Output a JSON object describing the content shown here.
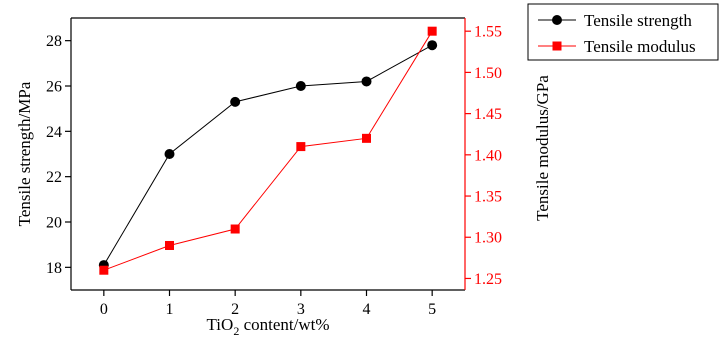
{
  "chart_data": {
    "type": "line",
    "x": [
      0,
      1,
      2,
      3,
      4,
      5
    ],
    "xlabel": {
      "main": "TiO",
      "sub": "2",
      "rest": " content/wt%"
    },
    "xlim": [
      -0.5,
      5.5
    ],
    "x_ticks": [
      "0",
      "1",
      "2",
      "3",
      "4",
      "5"
    ],
    "y_left": {
      "label": "Tensile strength/MPa",
      "lim": [
        17,
        29
      ],
      "ticks": [
        "18",
        "20",
        "22",
        "24",
        "26",
        "28"
      ],
      "color": "#000000"
    },
    "y_right": {
      "label": "Tensile modulus/GPa",
      "lim": [
        1.236,
        1.566
      ],
      "ticks": [
        "1.25",
        "1.30",
        "1.35",
        "1.40",
        "1.45",
        "1.50",
        "1.55"
      ],
      "color": "#ff0000"
    },
    "series": [
      {
        "name": "Tensile strength",
        "axis": "left",
        "values": [
          18.1,
          23.0,
          25.3,
          26.0,
          26.2,
          27.8
        ],
        "color": "#000000",
        "marker": "circle"
      },
      {
        "name": "Tensile modulus",
        "axis": "right",
        "values": [
          1.26,
          1.29,
          1.31,
          1.41,
          1.42,
          1.55
        ],
        "color": "#ff0000",
        "marker": "square"
      }
    ],
    "legend": "top-right",
    "grid": false
  }
}
